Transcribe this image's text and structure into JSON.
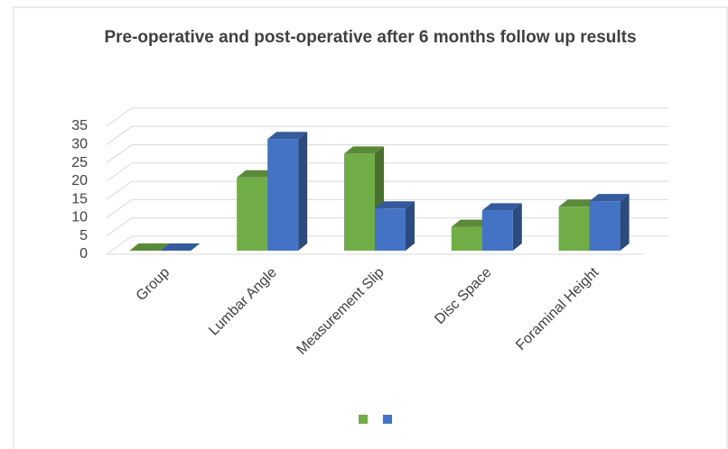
{
  "chart_data": {
    "type": "bar3d",
    "title": "Pre-operative and post-operative after 6 months follow up results",
    "categories": [
      "Group",
      "Lumbar Angle",
      "Measurement Slip",
      "Disc Space",
      "Foraminal Height"
    ],
    "series": [
      {
        "color": "#70ad47",
        "values": [
          0,
          21,
          27.5,
          7.5,
          13
        ]
      },
      {
        "color": "#4472c4",
        "values": [
          0,
          31.5,
          12.5,
          12,
          14.5
        ]
      }
    ],
    "ylim": [
      0,
      35
    ],
    "yticks": [
      0,
      5,
      10,
      15,
      20,
      25,
      30,
      35
    ],
    "grid": true,
    "legend": "bottom"
  }
}
